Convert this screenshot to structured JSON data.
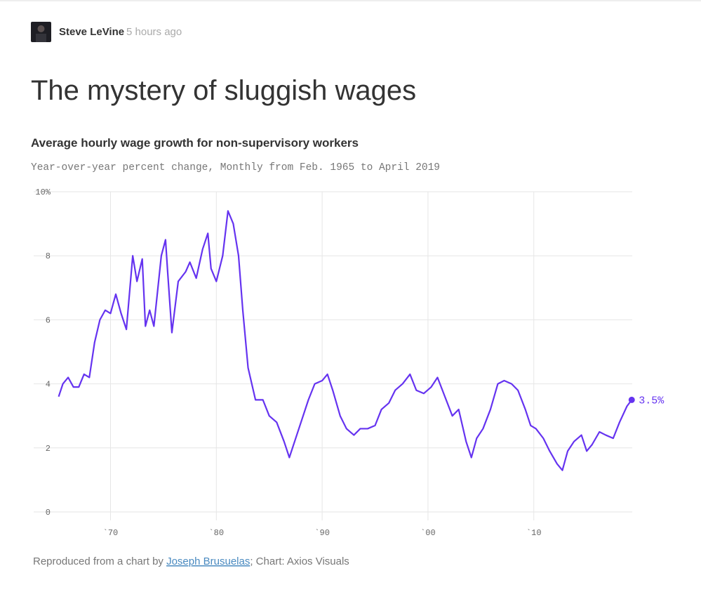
{
  "header": {
    "author": "Steve LeVine",
    "time": "5 hours ago",
    "headline": "The mystery of sluggish wages"
  },
  "chart_data": {
    "type": "line",
    "title": "Average hourly wage growth for non-supervisory workers",
    "subtitle": "Year-over-year percent change, Monthly from Feb. 1965 to April 2019",
    "x": [
      1965.1,
      1965.5,
      1966.0,
      1966.5,
      1967.0,
      1967.5,
      1968.0,
      1968.5,
      1969.0,
      1969.5,
      1970.0,
      1970.5,
      1971.0,
      1971.5,
      1972.1,
      1972.5,
      1973.0,
      1973.3,
      1973.7,
      1974.1,
      1974.8,
      1975.2,
      1975.4,
      1975.8,
      1976.4,
      1977.1,
      1977.5,
      1978.1,
      1978.7,
      1979.2,
      1979.5,
      1980.0,
      1980.6,
      1981.1,
      1981.6,
      1982.1,
      1982.5,
      1983.0,
      1983.7,
      1984.4,
      1985.0,
      1985.7,
      1986.4,
      1986.9,
      1987.4,
      1988.0,
      1988.7,
      1989.3,
      1990.0,
      1990.5,
      1991.0,
      1991.7,
      1992.3,
      1993.0,
      1993.6,
      1994.3,
      1995.0,
      1995.6,
      1996.3,
      1996.9,
      1997.6,
      1998.3,
      1998.9,
      1999.6,
      2000.3,
      2000.9,
      2001.6,
      2002.3,
      2002.9,
      2003.6,
      2004.1,
      2004.6,
      2005.2,
      2005.9,
      2006.6,
      2007.2,
      2007.9,
      2008.5,
      2009.2,
      2009.7,
      2010.2,
      2010.9,
      2011.5,
      2012.2,
      2012.7,
      2013.2,
      2013.8,
      2014.5,
      2015.0,
      2015.5,
      2016.2,
      2016.8,
      2017.5,
      2018.1,
      2018.8,
      2019.25
    ],
    "series": [
      {
        "color": "#6533f0",
        "values": [
          3.6,
          4.0,
          4.2,
          3.9,
          3.9,
          4.3,
          4.2,
          5.3,
          6.0,
          6.3,
          6.2,
          6.8,
          6.2,
          5.7,
          8.0,
          7.2,
          7.9,
          5.8,
          6.3,
          5.8,
          8.0,
          8.5,
          7.5,
          5.6,
          7.2,
          7.5,
          7.8,
          7.3,
          8.2,
          8.7,
          7.6,
          7.2,
          8.0,
          9.4,
          9.0,
          8.0,
          6.3,
          4.5,
          3.5,
          3.5,
          3.0,
          2.8,
          2.2,
          1.7,
          2.2,
          2.8,
          3.5,
          4.0,
          4.1,
          4.3,
          3.8,
          3.0,
          2.6,
          2.4,
          2.6,
          2.6,
          2.7,
          3.2,
          3.4,
          3.8,
          4.0,
          4.3,
          3.8,
          3.7,
          3.9,
          4.2,
          3.6,
          3.0,
          3.2,
          2.2,
          1.7,
          2.3,
          2.6,
          3.2,
          4.0,
          4.1,
          4.0,
          3.8,
          3.2,
          2.7,
          2.6,
          2.3,
          1.9,
          1.5,
          1.3,
          1.9,
          2.2,
          2.4,
          1.9,
          2.1,
          2.5,
          2.4,
          2.3,
          2.8,
          3.3,
          3.5
        ]
      }
    ],
    "annotations": [
      {
        "x": 2019.25,
        "value": 3.5,
        "label": "3.5%"
      }
    ],
    "xlim": [
      1964.2,
      2019.3
    ],
    "xticks": [
      {
        "value": 1970,
        "label": "`70"
      },
      {
        "value": 1980,
        "label": "`80"
      },
      {
        "value": 1990,
        "label": "`90"
      },
      {
        "value": 2000,
        "label": "`00"
      },
      {
        "value": 2010,
        "label": "`10"
      }
    ],
    "ylim": [
      0,
      10
    ],
    "yticks": [
      0,
      2,
      4,
      6,
      8,
      {
        "value": 10,
        "label": "10%"
      }
    ],
    "grid": true
  },
  "source": {
    "prefix": "Reproduced from a chart by ",
    "link": "Joseph Brusuelas",
    "suffix": "; Chart: Axios Visuals"
  }
}
